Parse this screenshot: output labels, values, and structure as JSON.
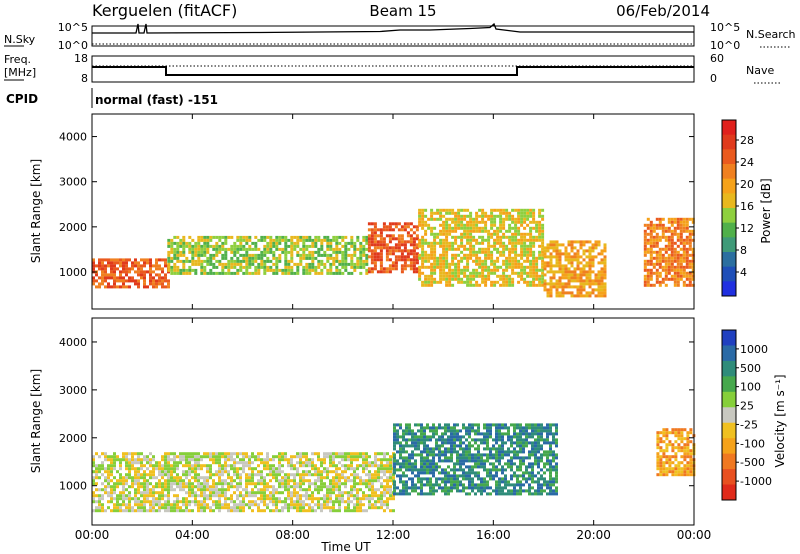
{
  "header": {
    "station": "Kerguelen (fitACF)",
    "beam": "Beam 15",
    "date": "06/Feb/2014"
  },
  "panels": {
    "nsky_label": "N.Sky",
    "nsky_ticks": [
      "10^5",
      "10^0"
    ],
    "nsearch_label": "N.Search",
    "nsearch_ticks": [
      "10^5",
      "10^0"
    ],
    "freq_label_1": "Freq.",
    "freq_label_2": "[MHz]",
    "freq_ticks": [
      "18",
      "8"
    ],
    "nave_label": "Nave",
    "nave_ticks": [
      "60",
      "0"
    ],
    "cpid_label": "CPID",
    "cpid_value": "normal (fast) -151"
  },
  "chart_data": [
    {
      "type": "heatmap",
      "title": "Power",
      "ylabel": "Slant Range [km]",
      "ylim": [
        180,
        4500
      ],
      "yticks": [
        "1000",
        "2000",
        "3000",
        "4000"
      ],
      "xlabel": "Time UT",
      "xticks": [
        "00:00",
        "04:00",
        "08:00",
        "12:00",
        "16:00",
        "20:00",
        "00:00"
      ],
      "colorbar": {
        "label": "Power [dB]",
        "ticks": [
          "4",
          "8",
          "12",
          "16",
          "20",
          "24",
          "28"
        ],
        "colors": [
          "#2030e0",
          "#1f4fb8",
          "#2b6fa0",
          "#3f9a78",
          "#50b04a",
          "#8ecf3e",
          "#e8b81e",
          "#f5a21a",
          "#f08020",
          "#ea5a1e",
          "#e03a1c",
          "#e0201c"
        ]
      },
      "regions": [
        {
          "t0": 0.0,
          "t1": 3.0,
          "r0": 700,
          "r1": 1300,
          "level": 26
        },
        {
          "t0": 3.0,
          "t1": 11.0,
          "r0": 1000,
          "r1": 1800,
          "level": 14
        },
        {
          "t0": 11.0,
          "t1": 13.0,
          "r0": 1000,
          "r1": 2100,
          "level": 24
        },
        {
          "t0": 13.0,
          "t1": 18.0,
          "r0": 700,
          "r1": 2400,
          "level": 18
        },
        {
          "t0": 18.0,
          "t1": 20.5,
          "r0": 500,
          "r1": 1700,
          "level": 20
        },
        {
          "t0": 22.0,
          "t1": 24.0,
          "r0": 700,
          "r1": 2200,
          "level": 22
        }
      ]
    },
    {
      "type": "heatmap",
      "title": "Velocity",
      "ylabel": "Slant Range [km]",
      "ylim": [
        180,
        4500
      ],
      "yticks": [
        "1000",
        "2000",
        "3000",
        "4000"
      ],
      "xlabel": "Time UT",
      "xticks": [
        "00:00",
        "04:00",
        "08:00",
        "12:00",
        "16:00",
        "20:00",
        "00:00"
      ],
      "colorbar": {
        "label": "Velocity [m s⁻¹]",
        "ticks": [
          "1000",
          "500",
          "100",
          "25",
          "-25",
          "-100",
          "-500",
          "-1000"
        ],
        "colors": [
          "#2040c0",
          "#2a6aa6",
          "#2f8c7a",
          "#46a84c",
          "#86cf3a",
          "#c8c8c0",
          "#f0c020",
          "#f5a21a",
          "#f07820",
          "#e85020",
          "#e02a1a"
        ]
      },
      "regions": [
        {
          "t0": 0.0,
          "t1": 12.0,
          "r0": 500,
          "r1": 1700,
          "level": 0
        },
        {
          "t0": 12.0,
          "t1": 18.5,
          "r0": 800,
          "r1": 2300,
          "level": 200
        },
        {
          "t0": 22.5,
          "t1": 24.0,
          "r0": 1200,
          "r1": 2200,
          "level": -400
        }
      ]
    }
  ]
}
